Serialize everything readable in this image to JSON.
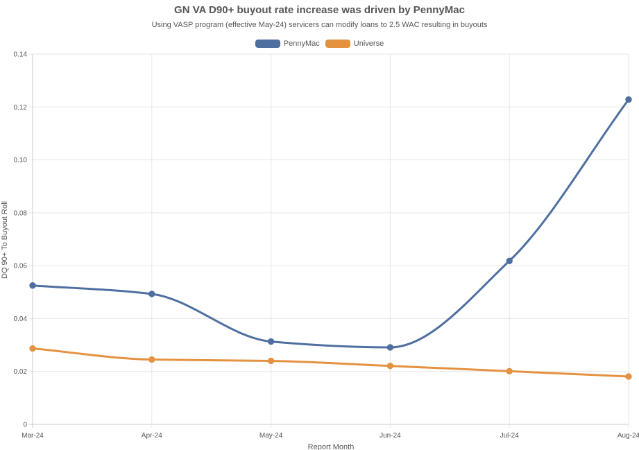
{
  "chart_data": {
    "type": "line",
    "title": "GN VA D90+ buyout rate increase was driven by PennyMac",
    "subtitle": "Using VASP program (effective May-24) servicers can modify loans to 2.5 WAC resulting in buyouts",
    "xlabel": "Report Month",
    "ylabel": "DQ 90+ To Buyout Roll",
    "categories": [
      "Mar-24",
      "Apr-24",
      "May-24",
      "Jun-24",
      "Jul-24",
      "Aug-24"
    ],
    "ylim": [
      0,
      0.14
    ],
    "yticks": [
      "0",
      "0.02",
      "0.04",
      "0.06",
      "0.08",
      "0.10",
      "0.12",
      "0.14"
    ],
    "grid": true,
    "legend_position": "top",
    "series": [
      {
        "name": "PennyMac",
        "color": "#4e6fa0",
        "values": [
          0.0525,
          0.0493,
          0.0313,
          0.0291,
          0.0618,
          0.1228
        ]
      },
      {
        "name": "Universe",
        "color": "#e59240",
        "values": [
          0.0287,
          0.0245,
          0.024,
          0.0221,
          0.0201,
          0.0181
        ]
      }
    ]
  }
}
